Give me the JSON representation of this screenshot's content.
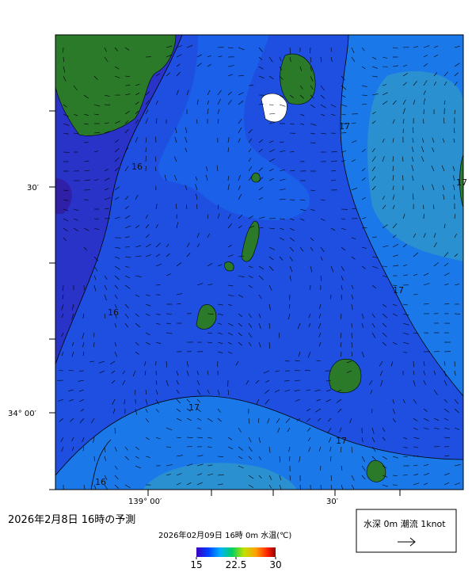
{
  "map": {
    "lat_labels": [
      "30′",
      "34° 00′"
    ],
    "lon_labels": [
      "139° 00′",
      "30′"
    ],
    "contour_labels": [
      "16",
      "16",
      "16",
      "17",
      "17",
      "17",
      "17",
      "17"
    ],
    "title": "2026年2月8日  16時の予測",
    "subtitle": "2026年02月09日 16時 0m 水温(℃)",
    "legend": "水深 0m 潮流 1knot",
    "colorbar": {
      "range": [
        15,
        30
      ],
      "ticks": [
        15,
        {
          "value": 22.5,
          "label": "22.5"
        },
        30
      ]
    }
  }
}
